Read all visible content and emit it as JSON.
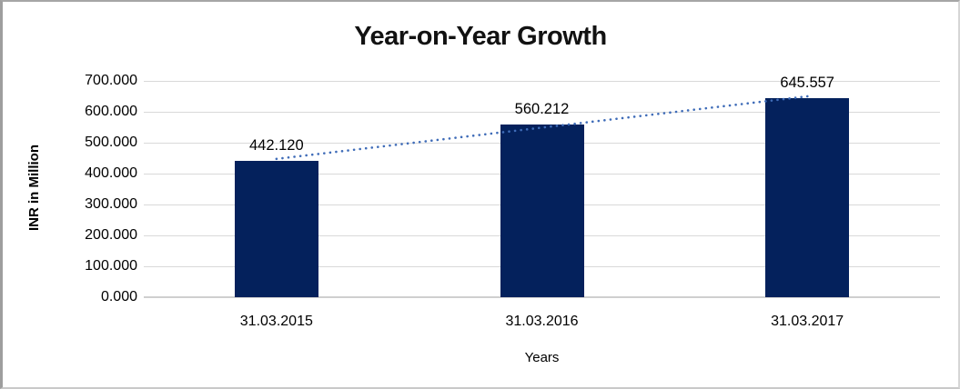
{
  "chart_data": {
    "type": "bar",
    "title": "Year-on-Year Growth",
    "xlabel": "Years",
    "ylabel": "INR in Million",
    "categories": [
      "31.03.2015",
      "31.03.2016",
      "31.03.2017"
    ],
    "values": [
      442.12,
      560.212,
      645.557
    ],
    "value_labels": [
      "442.120",
      "560.212",
      "645.557"
    ],
    "ylim": [
      0,
      700
    ],
    "ytick_step": 100,
    "ytick_labels": [
      "0.000",
      "100.000",
      "200.000",
      "300.000",
      "400.000",
      "500.000",
      "600.000",
      "700.000"
    ],
    "grid": true,
    "legend": "none",
    "trendline": {
      "type": "linear",
      "style": "dotted"
    },
    "colors": {
      "bar": "#04215c",
      "trendline": "#3f6cb8",
      "gridline": "#d9d9d9",
      "axis_line": "#cfcfcf",
      "title_text": "#121212",
      "label_text": "#000000"
    }
  }
}
